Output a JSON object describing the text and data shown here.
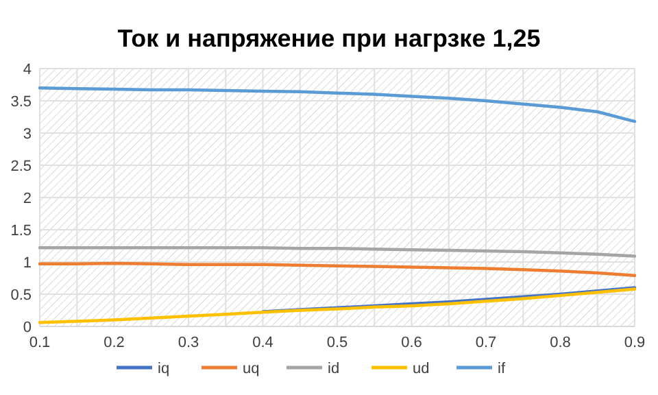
{
  "chart_data": {
    "type": "line",
    "title": "Ток и напряжение при нагрзке 1,25",
    "x": [
      0.1,
      0.15,
      0.2,
      0.25,
      0.3,
      0.35,
      0.4,
      0.45,
      0.5,
      0.55,
      0.6,
      0.65,
      0.7,
      0.75,
      0.8,
      0.85,
      0.9
    ],
    "series": [
      {
        "name": "iq",
        "color": "#4472c4",
        "values": [
          null,
          null,
          null,
          null,
          null,
          null,
          0.23,
          0.26,
          0.29,
          0.32,
          0.35,
          0.38,
          0.42,
          0.46,
          0.5,
          0.55,
          0.6
        ]
      },
      {
        "name": "uq",
        "color": "#ed7d31",
        "values": [
          0.97,
          0.97,
          0.98,
          0.97,
          0.96,
          0.96,
          0.96,
          0.95,
          0.94,
          0.93,
          0.92,
          0.91,
          0.9,
          0.88,
          0.86,
          0.83,
          0.79
        ]
      },
      {
        "name": "id",
        "color": "#a5a5a5",
        "values": [
          1.22,
          1.22,
          1.22,
          1.22,
          1.22,
          1.22,
          1.22,
          1.21,
          1.21,
          1.2,
          1.19,
          1.18,
          1.17,
          1.16,
          1.14,
          1.12,
          1.09
        ]
      },
      {
        "name": "ud",
        "color": "#ffc000",
        "values": [
          0.06,
          0.08,
          0.1,
          0.13,
          0.16,
          0.19,
          0.22,
          0.25,
          0.27,
          0.3,
          0.32,
          0.35,
          0.39,
          0.43,
          0.48,
          0.53,
          0.58
        ]
      },
      {
        "name": "if",
        "color": "#5b9bd5",
        "values": [
          3.7,
          3.69,
          3.68,
          3.67,
          3.67,
          3.66,
          3.65,
          3.64,
          3.62,
          3.6,
          3.57,
          3.54,
          3.5,
          3.45,
          3.4,
          3.33,
          3.18
        ]
      }
    ],
    "xlim": [
      0.1,
      0.9
    ],
    "xticks": [
      0.1,
      {
        "value": 0.15,
        "label": null
      },
      0.2,
      {
        "value": 0.25,
        "label": null
      },
      0.3,
      {
        "value": 0.35,
        "label": null
      },
      0.4,
      {
        "value": 0.45,
        "label": null
      },
      0.5,
      {
        "value": 0.55,
        "label": null
      },
      0.6,
      {
        "value": 0.65,
        "label": null
      },
      0.7,
      {
        "value": 0.75,
        "label": null
      },
      0.8,
      {
        "value": 0.85,
        "label": null
      },
      0.9
    ],
    "ylim": [
      0,
      4
    ],
    "yticks": [
      0,
      0.5,
      1,
      1.5,
      2,
      2.5,
      3,
      3.5,
      4
    ],
    "grid": true,
    "legend": "bottom"
  }
}
